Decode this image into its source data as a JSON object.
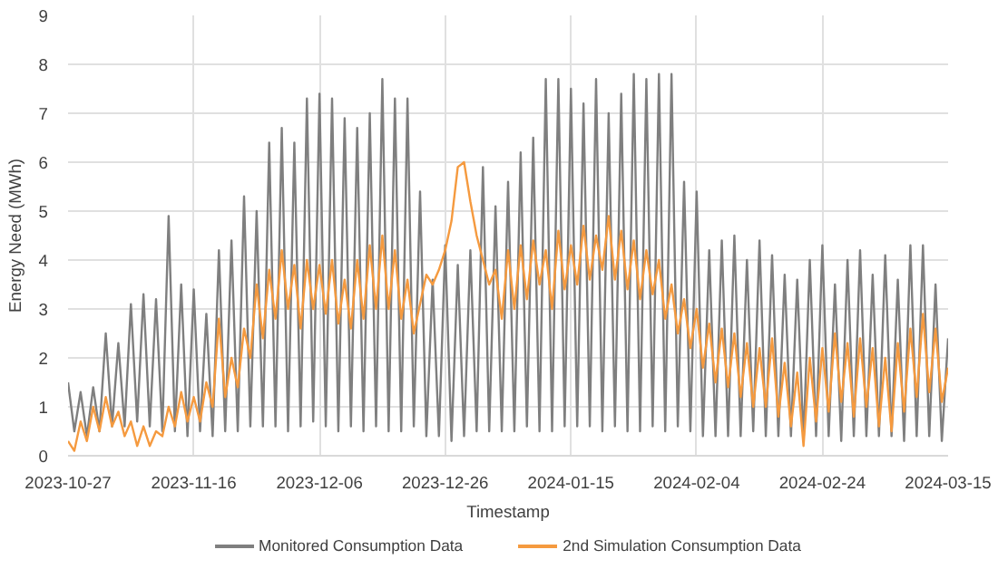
{
  "chart_data": {
    "type": "line",
    "xlabel": "Timestamp",
    "ylabel": "Energy Need (MWh)",
    "x": [
      "2023-10-27",
      "2023-10-28",
      "2023-10-29",
      "2023-10-30",
      "2023-10-31",
      "2023-11-01",
      "2023-11-02",
      "2023-11-03",
      "2023-11-04",
      "2023-11-05",
      "2023-11-06",
      "2023-11-07",
      "2023-11-08",
      "2023-11-09",
      "2023-11-10",
      "2023-11-11",
      "2023-11-12",
      "2023-11-13",
      "2023-11-14",
      "2023-11-15",
      "2023-11-16",
      "2023-11-17",
      "2023-11-18",
      "2023-11-19",
      "2023-11-20",
      "2023-11-21",
      "2023-11-22",
      "2023-11-23",
      "2023-11-24",
      "2023-11-25",
      "2023-11-26",
      "2023-11-27",
      "2023-11-28",
      "2023-11-29",
      "2023-11-30",
      "2023-12-01",
      "2023-12-02",
      "2023-12-03",
      "2023-12-04",
      "2023-12-05",
      "2023-12-06",
      "2023-12-07",
      "2023-12-08",
      "2023-12-09",
      "2023-12-10",
      "2023-12-11",
      "2023-12-12",
      "2023-12-13",
      "2023-12-14",
      "2023-12-15",
      "2023-12-16",
      "2023-12-17",
      "2023-12-18",
      "2023-12-19",
      "2023-12-20",
      "2023-12-21",
      "2023-12-22",
      "2023-12-23",
      "2023-12-24",
      "2023-12-25",
      "2023-12-26",
      "2023-12-27",
      "2023-12-28",
      "2023-12-29",
      "2023-12-30",
      "2023-12-31",
      "2024-01-01",
      "2024-01-02",
      "2024-01-03",
      "2024-01-04",
      "2024-01-05",
      "2024-01-06",
      "2024-01-07",
      "2024-01-08",
      "2024-01-09",
      "2024-01-10",
      "2024-01-11",
      "2024-01-12",
      "2024-01-13",
      "2024-01-14",
      "2024-01-15",
      "2024-01-16",
      "2024-01-17",
      "2024-01-18",
      "2024-01-19",
      "2024-01-20",
      "2024-01-21",
      "2024-01-22",
      "2024-01-23",
      "2024-01-24",
      "2024-01-25",
      "2024-01-26",
      "2024-01-27",
      "2024-01-28",
      "2024-01-29",
      "2024-01-30",
      "2024-01-31",
      "2024-02-01",
      "2024-02-02",
      "2024-02-03",
      "2024-02-04",
      "2024-02-05",
      "2024-02-06",
      "2024-02-07",
      "2024-02-08",
      "2024-02-09",
      "2024-02-10",
      "2024-02-11",
      "2024-02-12",
      "2024-02-13",
      "2024-02-14",
      "2024-02-15",
      "2024-02-16",
      "2024-02-17",
      "2024-02-18",
      "2024-02-19",
      "2024-02-20",
      "2024-02-21",
      "2024-02-22",
      "2024-02-23",
      "2024-02-24",
      "2024-02-25",
      "2024-02-26",
      "2024-02-27",
      "2024-02-28",
      "2024-02-29",
      "2024-03-01",
      "2024-03-02",
      "2024-03-03",
      "2024-03-04",
      "2024-03-05",
      "2024-03-06",
      "2024-03-07",
      "2024-03-08",
      "2024-03-09",
      "2024-03-10",
      "2024-03-11",
      "2024-03-12",
      "2024-03-13",
      "2024-03-14",
      "2024-03-15"
    ],
    "series": [
      {
        "name": "Monitored Consumption Data",
        "color": "#7f7f7f",
        "values": [
          1.5,
          0.5,
          1.3,
          0.4,
          1.4,
          0.5,
          2.5,
          0.6,
          2.3,
          0.6,
          3.1,
          0.7,
          3.3,
          0.6,
          3.2,
          0.5,
          4.9,
          0.5,
          3.5,
          0.4,
          3.4,
          0.5,
          2.9,
          0.4,
          4.2,
          0.5,
          4.4,
          0.5,
          5.3,
          0.6,
          5.0,
          0.6,
          6.4,
          0.6,
          6.7,
          0.5,
          6.4,
          0.6,
          7.3,
          0.7,
          7.4,
          0.6,
          7.3,
          0.5,
          6.9,
          0.6,
          6.7,
          0.5,
          7.0,
          0.6,
          7.7,
          0.5,
          7.3,
          0.5,
          7.3,
          0.6,
          5.4,
          0.4,
          3.6,
          0.4,
          4.3,
          0.3,
          3.9,
          0.4,
          4.2,
          0.5,
          5.9,
          0.5,
          5.1,
          0.5,
          5.6,
          0.5,
          6.2,
          0.6,
          6.5,
          0.5,
          7.7,
          0.5,
          7.7,
          0.6,
          7.5,
          0.6,
          7.2,
          0.6,
          7.7,
          0.5,
          7.0,
          0.6,
          7.4,
          0.5,
          7.8,
          0.5,
          7.7,
          0.6,
          7.8,
          0.5,
          7.8,
          0.6,
          5.6,
          0.5,
          5.4,
          0.4,
          4.2,
          0.4,
          4.4,
          0.4,
          4.5,
          0.4,
          4.0,
          0.5,
          4.4,
          0.4,
          4.1,
          0.4,
          3.7,
          0.4,
          3.6,
          0.3,
          4.0,
          0.4,
          4.3,
          0.4,
          3.5,
          0.3,
          4.0,
          0.4,
          4.2,
          0.4,
          3.7,
          0.4,
          4.1,
          0.4,
          3.6,
          0.3,
          4.3,
          0.4,
          4.3,
          0.4,
          3.5,
          0.3,
          2.4
        ]
      },
      {
        "name": "2nd Simulation Consumption Data",
        "color": "#f59a3f",
        "values": [
          0.3,
          0.1,
          0.7,
          0.3,
          1.0,
          0.5,
          1.2,
          0.6,
          0.9,
          0.4,
          0.7,
          0.2,
          0.6,
          0.2,
          0.5,
          0.4,
          1.0,
          0.6,
          1.3,
          0.7,
          1.2,
          0.7,
          1.5,
          1.0,
          2.8,
          1.2,
          2.0,
          1.4,
          2.6,
          2.0,
          3.5,
          2.4,
          3.8,
          2.8,
          4.2,
          3.0,
          3.9,
          2.6,
          4.0,
          3.0,
          3.9,
          2.9,
          4.0,
          2.7,
          3.6,
          2.6,
          4.0,
          2.8,
          4.3,
          3.0,
          4.5,
          3.0,
          4.2,
          2.8,
          3.6,
          2.5,
          3.1,
          3.7,
          3.5,
          3.8,
          4.2,
          4.8,
          5.9,
          6.0,
          5.2,
          4.5,
          4.0,
          3.5,
          3.8,
          2.8,
          4.2,
          3.0,
          4.3,
          3.2,
          4.4,
          3.5,
          4.2,
          3.0,
          4.6,
          3.4,
          4.3,
          3.5,
          4.7,
          3.6,
          4.5,
          3.8,
          4.9,
          3.6,
          4.6,
          3.4,
          4.4,
          3.2,
          4.2,
          3.3,
          4.0,
          2.8,
          3.5,
          2.5,
          3.2,
          2.2,
          3.0,
          1.8,
          2.7,
          1.5,
          2.6,
          1.4,
          2.5,
          1.2,
          2.3,
          1.0,
          2.2,
          1.0,
          2.4,
          0.8,
          1.9,
          0.6,
          1.7,
          0.2,
          2.0,
          0.7,
          2.2,
          0.9,
          2.5,
          1.1,
          2.3,
          0.8,
          2.4,
          1.0,
          2.2,
          0.6,
          2.0,
          0.5,
          2.3,
          0.9,
          2.6,
          1.2,
          2.9,
          1.3,
          2.6,
          1.1,
          1.8
        ]
      }
    ],
    "xlim": [
      "2023-10-27",
      "2024-03-15"
    ],
    "xticks": [
      "2023-10-27",
      "2023-11-16",
      "2023-12-06",
      "2023-12-26",
      "2024-01-15",
      "2024-02-04",
      "2024-02-24",
      "2024-03-15"
    ],
    "ylim": [
      0,
      9
    ],
    "yticks": [
      0,
      1,
      2,
      3,
      4,
      5,
      6,
      7,
      8,
      9
    ],
    "grid": true,
    "legend": "bottom",
    "marker": "none",
    "line_style": "solid"
  }
}
